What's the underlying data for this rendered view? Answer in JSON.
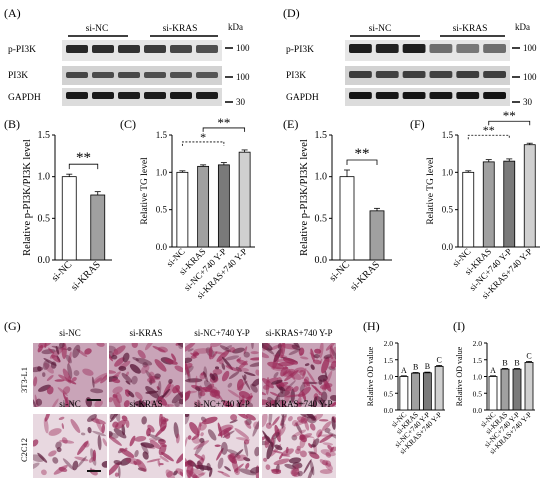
{
  "panels": {
    "A": "(A)",
    "B": "(B)",
    "C": "(C)",
    "D": "(D)",
    "E": "(E)",
    "F": "(F)",
    "G": "(G)",
    "H": "(H)",
    "I": "(I)"
  },
  "blot_A": {
    "groups": [
      "si-NC",
      "si-KRAS"
    ],
    "rows": [
      "p-PI3K",
      "PI3K",
      "GAPDH"
    ],
    "unit": "kDa",
    "markers": [
      "100",
      "100",
      "30"
    ]
  },
  "blot_D": {
    "groups": [
      "si-NC",
      "si-KRAS"
    ],
    "rows": [
      "p-PI3K",
      "PI3K",
      "GAPDH"
    ],
    "unit": "kDa",
    "markers": [
      "100",
      "100",
      "30"
    ]
  },
  "stain": {
    "columns": [
      "si-NC",
      "si-KRAS",
      "si-NC+740 Y-P",
      "si-KRAS+740 Y-P"
    ],
    "rows": [
      "3T3-L1",
      "C2C12"
    ],
    "colors": {
      "background": "#e8d8e0",
      "stain": "#9c2c5a",
      "dark": "#5a1a3a"
    }
  },
  "chart_data": [
    {
      "panel": "B",
      "type": "bar",
      "categories": [
        "si-NC",
        "si-KRAS"
      ],
      "values": [
        1.0,
        0.78
      ],
      "errors": [
        0.03,
        0.04
      ],
      "ylabel": "Relative p-PI3K/PI3K level",
      "ylim": [
        0,
        1.5
      ],
      "yticks": [
        "0.0",
        "0.5",
        "1.0",
        "1.5"
      ],
      "annotations": [
        "**"
      ],
      "colors": [
        "#ffffff",
        "#a0a0a0"
      ]
    },
    {
      "panel": "C",
      "type": "bar",
      "categories": [
        "si-NC",
        "si-KRAS",
        "si-NC+740 Y-P",
        "si-KRAS+740 Y-P"
      ],
      "values": [
        1.0,
        1.08,
        1.1,
        1.27
      ],
      "errors": [
        0.02,
        0.02,
        0.03,
        0.03
      ],
      "ylabel": "Relative TG level",
      "ylim": [
        0,
        1.5
      ],
      "yticks": [
        "0.0",
        "0.5",
        "1.0",
        "1.5"
      ],
      "annotations": [
        "*",
        "**"
      ],
      "colors": [
        "#ffffff",
        "#a0a0a0",
        "#7a7a7a",
        "#d0d0d0"
      ]
    },
    {
      "panel": "E",
      "type": "bar",
      "categories": [
        "si-NC",
        "si-KRAS"
      ],
      "values": [
        1.0,
        0.59
      ],
      "errors": [
        0.08,
        0.03
      ],
      "ylabel": "Relative p-PI3K/PI3K level",
      "ylim": [
        0,
        1.5
      ],
      "yticks": [
        "0.0",
        "0.5",
        "1.0",
        "1.5"
      ],
      "annotations": [
        "**"
      ],
      "colors": [
        "#ffffff",
        "#a0a0a0"
      ]
    },
    {
      "panel": "F",
      "type": "bar",
      "categories": [
        "si-NC",
        "si-KRAS",
        "si-NC+740 Y-P",
        "si-KRAS+740 Y-P"
      ],
      "values": [
        1.0,
        1.14,
        1.15,
        1.37
      ],
      "errors": [
        0.02,
        0.03,
        0.03,
        0.02
      ],
      "ylabel": "Relative TG level",
      "ylim": [
        0,
        1.5
      ],
      "yticks": [
        "0.0",
        "0.5",
        "1.0",
        "1.5"
      ],
      "annotations": [
        "**",
        "**"
      ],
      "colors": [
        "#ffffff",
        "#a0a0a0",
        "#7a7a7a",
        "#d0d0d0"
      ]
    },
    {
      "panel": "H",
      "type": "bar",
      "categories": [
        "si-NC",
        "si-KRAS",
        "si-NC+740 Y-P",
        "si-KRAS+740 Y-P"
      ],
      "values": [
        1.0,
        1.1,
        1.11,
        1.3
      ],
      "errors": [
        0.02,
        0.02,
        0.02,
        0.03
      ],
      "ylabel": "Relative OD value",
      "ylim": [
        0,
        2.0
      ],
      "yticks": [
        "0.0",
        "0.5",
        "1.0",
        "1.5",
        "2.0"
      ],
      "letters": [
        "A",
        "B",
        "B",
        "C"
      ],
      "colors": [
        "#ffffff",
        "#a0a0a0",
        "#7a7a7a",
        "#d0d0d0"
      ]
    },
    {
      "panel": "I",
      "type": "bar",
      "categories": [
        "si-NC",
        "si-KRAS",
        "si-NC+740 Y-P",
        "si-KRAS+740 Y-P"
      ],
      "values": [
        1.0,
        1.22,
        1.22,
        1.42
      ],
      "errors": [
        0.02,
        0.02,
        0.02,
        0.03
      ],
      "ylabel": "Relative OD value",
      "ylim": [
        0,
        2.0
      ],
      "yticks": [
        "0.0",
        "0.5",
        "1.0",
        "1.5",
        "2.0"
      ],
      "letters": [
        "A",
        "B",
        "B",
        "C"
      ],
      "colors": [
        "#ffffff",
        "#a0a0a0",
        "#7a7a7a",
        "#d0d0d0"
      ]
    }
  ]
}
